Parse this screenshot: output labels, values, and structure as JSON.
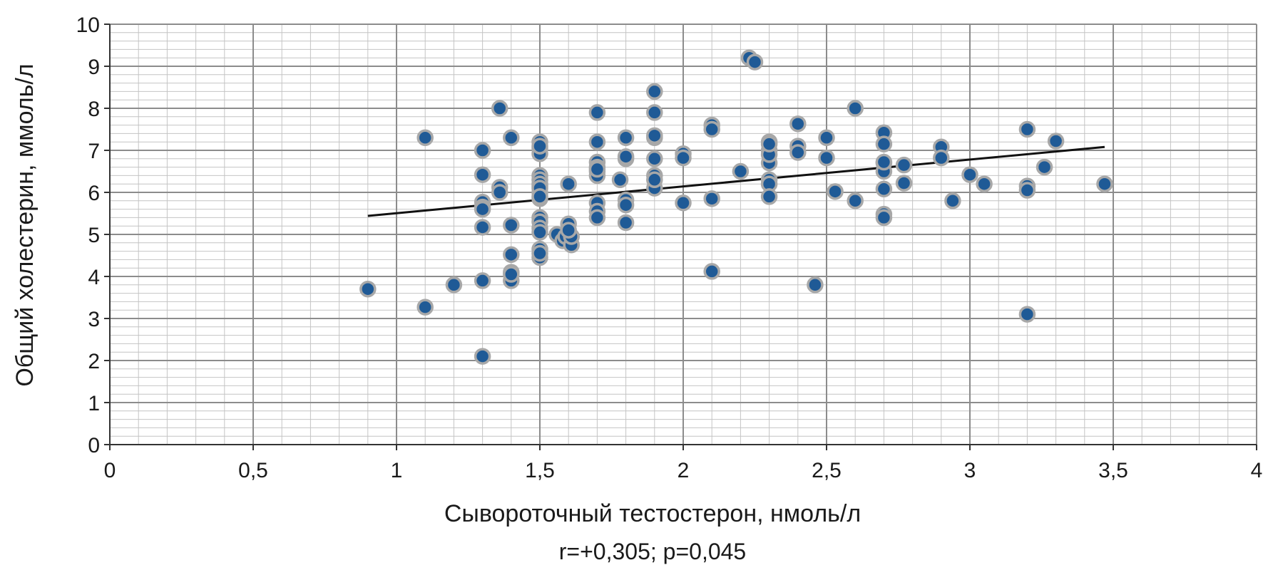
{
  "chart_data": {
    "type": "scatter",
    "title": "",
    "xlabel": "Сывороточный тестостерон, нмоль/л",
    "ylabel": "Общий холестерин, ммоль/л",
    "annotation": "r=+0,305; p=0,045",
    "xlim": [
      0,
      4
    ],
    "ylim": [
      0,
      10
    ],
    "x_ticks": [
      "0",
      "0,5",
      "1",
      "1,5",
      "2",
      "2,5",
      "3",
      "3,5",
      "4"
    ],
    "y_ticks": [
      "0",
      "1",
      "2",
      "3",
      "4",
      "5",
      "6",
      "7",
      "8",
      "9",
      "10"
    ],
    "grid": true,
    "legend": "none",
    "colors": {
      "point_fill": "#1f5a96",
      "point_stroke": "#a8a8a8",
      "trendline": "#111111",
      "grid_major": "#8c8c8c",
      "grid_minor": "#c4c4c4"
    },
    "trendline": {
      "x": [
        0.9,
        3.47
      ],
      "y": [
        5.44,
        7.08
      ]
    },
    "series": [
      {
        "x": [
          0.9,
          1.1,
          1.1,
          1.2,
          1.3,
          1.3,
          1.3,
          1.3,
          1.3,
          1.3,
          1.3,
          1.3,
          1.36,
          1.36,
          1.36,
          1.4,
          1.4,
          1.4,
          1.4,
          1.4,
          1.4,
          1.5,
          1.5,
          1.5,
          1.5,
          1.5,
          1.5,
          1.5,
          1.5,
          1.5,
          1.5,
          1.5,
          1.5,
          1.5,
          1.5,
          1.5,
          1.5,
          1.5,
          1.5,
          1.5,
          1.56,
          1.58,
          1.59,
          1.6,
          1.6,
          1.61,
          1.61,
          1.6,
          1.7,
          1.7,
          1.7,
          1.7,
          1.7,
          1.7,
          1.7,
          1.7,
          1.7,
          1.7,
          1.78,
          1.8,
          1.8,
          1.8,
          1.8,
          1.8,
          1.8,
          1.9,
          1.9,
          1.9,
          1.9,
          1.9,
          1.9,
          1.9,
          1.9,
          2.0,
          2.0,
          2.0,
          2.1,
          2.1,
          2.1,
          2.1,
          2.2,
          2.23,
          2.25,
          2.3,
          2.3,
          2.3,
          2.3,
          2.3,
          2.3,
          2.3,
          2.3,
          2.4,
          2.4,
          2.4,
          2.46,
          2.5,
          2.5,
          2.53,
          2.6,
          2.6,
          2.7,
          2.7,
          2.7,
          2.7,
          2.7,
          2.7,
          2.7,
          2.7,
          2.77,
          2.77,
          2.9,
          2.9,
          2.94,
          3.0,
          3.05,
          3.2,
          3.2,
          3.2,
          3.2,
          3.26,
          3.3,
          3.47
        ],
        "y": [
          3.7,
          7.3,
          3.27,
          3.8,
          7.0,
          6.42,
          5.77,
          5.65,
          5.17,
          3.9,
          2.1,
          5.6,
          8.0,
          6.12,
          6.0,
          7.3,
          5.22,
          4.52,
          4.1,
          3.9,
          4.05,
          7.2,
          7.05,
          6.92,
          6.4,
          6.3,
          6.15,
          6.0,
          5.85,
          5.4,
          5.3,
          5.15,
          5.05,
          4.65,
          4.45,
          7.1,
          6.2,
          6.1,
          5.9,
          4.55,
          5.0,
          4.85,
          4.95,
          6.2,
          5.25,
          4.75,
          4.95,
          5.1,
          7.9,
          7.2,
          6.72,
          6.6,
          6.5,
          6.4,
          5.75,
          5.55,
          5.4,
          6.55,
          6.3,
          7.3,
          6.8,
          5.82,
          5.7,
          5.28,
          6.85,
          8.4,
          7.9,
          7.3,
          6.8,
          6.4,
          6.1,
          6.3,
          7.35,
          6.92,
          6.82,
          5.75,
          7.6,
          7.5,
          5.85,
          4.12,
          6.5,
          9.2,
          9.1,
          7.2,
          7.0,
          6.7,
          6.3,
          6.2,
          5.9,
          6.9,
          7.15,
          7.63,
          7.1,
          6.95,
          3.8,
          7.3,
          6.82,
          6.02,
          8.0,
          5.8,
          7.42,
          7.15,
          6.7,
          6.5,
          6.08,
          5.48,
          5.4,
          6.72,
          6.65,
          6.22,
          7.08,
          6.82,
          5.8,
          6.42,
          6.2,
          7.5,
          6.15,
          6.05,
          3.1,
          6.6,
          7.22,
          6.2
        ]
      }
    ]
  }
}
